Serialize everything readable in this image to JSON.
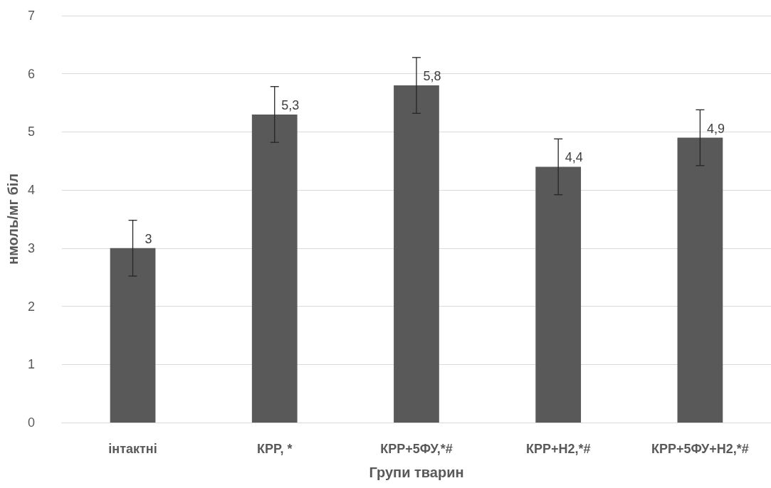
{
  "chart_data": {
    "type": "bar",
    "xlabel": "Групи тварин",
    "ylabel": "нмоль/мг біл",
    "categories": [
      "інтактні",
      "КРР, *",
      "КРР+5ФУ,*#",
      "КРР+Н2,*#",
      "КРР+5ФУ+Н2,*#"
    ],
    "values": [
      3,
      5.3,
      5.8,
      4.4,
      4.9
    ],
    "value_labels": [
      "3",
      "5,3",
      "5,8",
      "4,4",
      "4,9"
    ],
    "errors": [
      0.48,
      0.48,
      0.48,
      0.48,
      0.48
    ],
    "color": "#595959",
    "ylim": [
      0,
      7
    ],
    "yticks": [
      0,
      1,
      2,
      3,
      4,
      5,
      6,
      7
    ],
    "grid": "y"
  }
}
